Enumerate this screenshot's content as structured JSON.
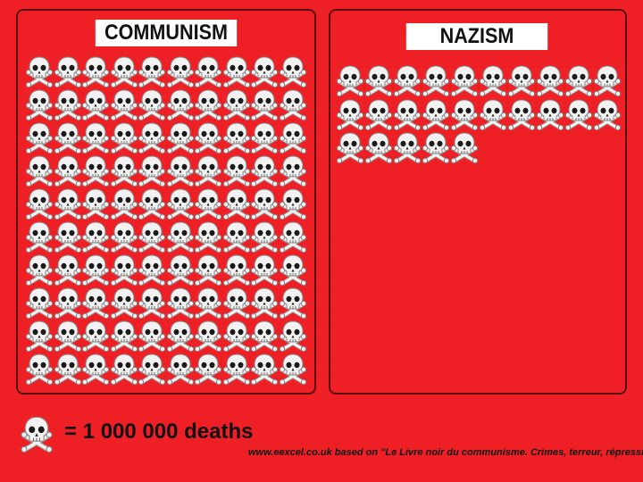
{
  "chart_data": {
    "type": "pictogram",
    "unit_icon": "skull-and-crossbones-icon",
    "unit_value": 1000000,
    "series": [
      {
        "name": "COMMUNISM",
        "icon_count": 100
      },
      {
        "name": "NAZISM",
        "icon_count": 25
      }
    ]
  },
  "panels": {
    "left_title": "COMMUNISM",
    "right_title": "NAZISM"
  },
  "legend": {
    "text": "= 1 000 000 deaths"
  },
  "source": "www.eexcel.co.uk based on \"Le Livre noir du communisme. Crimes, terreur, répression",
  "colors": {
    "background": "#ee1f25",
    "panel_border": "#5a1010",
    "skull": "#f2f2f2",
    "skull_shadow": "#9a9a9a"
  }
}
